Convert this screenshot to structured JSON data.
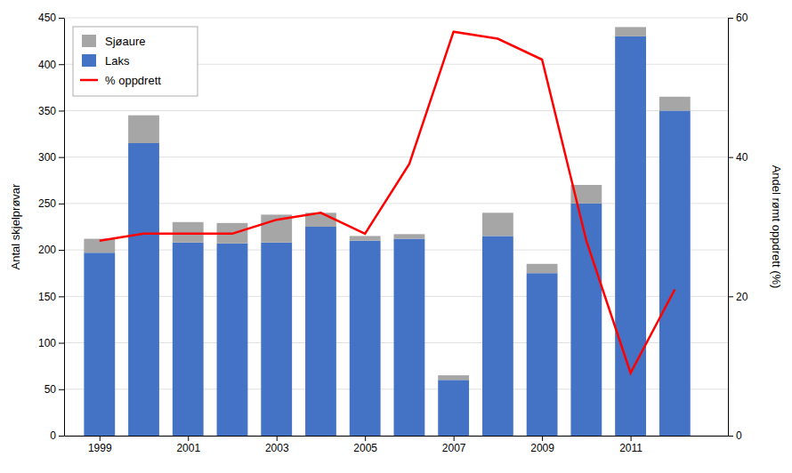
{
  "chart_data": {
    "type": "bar",
    "stacked": true,
    "x": [
      1999,
      2000,
      2001,
      2002,
      2003,
      2004,
      2005,
      2006,
      2007,
      2008,
      2009,
      2010,
      2011,
      2012
    ],
    "xlim": [
      1998.2,
      2013.2
    ],
    "xticks": [
      1999,
      2001,
      2003,
      2005,
      2007,
      2009,
      2011
    ],
    "ylim": [
      0,
      450
    ],
    "yticks": [
      0,
      50,
      100,
      150,
      200,
      250,
      300,
      350,
      400,
      450
    ],
    "y2lim": [
      0,
      60
    ],
    "y2ticks": [
      0,
      20,
      40,
      60
    ],
    "ylabel": "Antal skjelprøvar",
    "y2label": "Andel rømt oppdrett (%)",
    "grid": true,
    "legend": "upper left",
    "series": [
      {
        "name": "Laks",
        "color": "#4472C4",
        "values": [
          197,
          315,
          208,
          207,
          208,
          225,
          210,
          212,
          60,
          215,
          175,
          250,
          430,
          350
        ]
      },
      {
        "name": "Sjøaure",
        "color": "#A6A6A6",
        "values": [
          15,
          30,
          22,
          22,
          30,
          15,
          5,
          5,
          5,
          25,
          10,
          20,
          10,
          15
        ]
      },
      {
        "name": "% oppdrett",
        "type": "line",
        "axis": "y2",
        "color": "#FF0000",
        "values": [
          28,
          29,
          29,
          29,
          31,
          32,
          29,
          39,
          58,
          57,
          54,
          28,
          9,
          21
        ]
      }
    ]
  }
}
